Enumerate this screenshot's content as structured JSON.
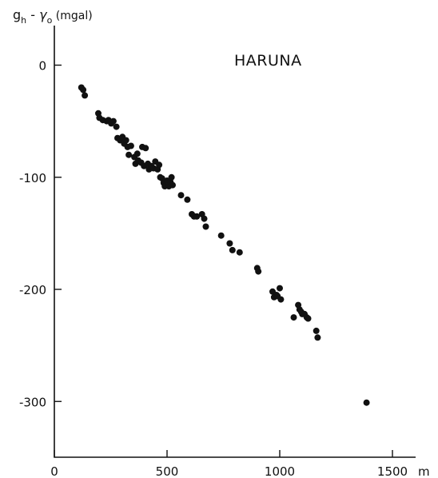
{
  "chart_data": {
    "type": "scatter",
    "title": "HARUNA",
    "ylabel": {
      "main": "g",
      "main_sub": "h",
      "operator": " - ",
      "symbol": "γ",
      "symbol_sub": "o",
      "unit": " (mgal)"
    },
    "xlabel_unit": "m",
    "xlim": [
      0,
      1600
    ],
    "ylim": [
      -350,
      40
    ],
    "x_ticks": [
      0,
      500,
      1000,
      1500
    ],
    "x_tick_labels": [
      "0",
      "500",
      "1000",
      "1500"
    ],
    "y_ticks": [
      0,
      -100,
      -200,
      -300
    ],
    "y_tick_labels": [
      "0",
      "-100",
      "-200",
      "-300"
    ],
    "grid": false,
    "legend": "none",
    "series": [
      {
        "points": [
          [
            120,
            -20
          ],
          [
            128,
            -22
          ],
          [
            135,
            -27
          ],
          [
            195,
            -43
          ],
          [
            200,
            -47
          ],
          [
            215,
            -49
          ],
          [
            232,
            -50
          ],
          [
            240,
            -49
          ],
          [
            252,
            -52
          ],
          [
            262,
            -50
          ],
          [
            275,
            -55
          ],
          [
            280,
            -65
          ],
          [
            292,
            -67
          ],
          [
            302,
            -64
          ],
          [
            310,
            -70
          ],
          [
            318,
            -67
          ],
          [
            325,
            -73
          ],
          [
            330,
            -80
          ],
          [
            340,
            -72
          ],
          [
            355,
            -82
          ],
          [
            360,
            -88
          ],
          [
            368,
            -79
          ],
          [
            372,
            -85
          ],
          [
            385,
            -87
          ],
          [
            390,
            -73
          ],
          [
            398,
            -90
          ],
          [
            405,
            -74
          ],
          [
            415,
            -88
          ],
          [
            420,
            -93
          ],
          [
            430,
            -90
          ],
          [
            440,
            -92
          ],
          [
            448,
            -86
          ],
          [
            458,
            -93
          ],
          [
            465,
            -89
          ],
          [
            470,
            -100
          ],
          [
            478,
            -101
          ],
          [
            485,
            -105
          ],
          [
            490,
            -108
          ],
          [
            500,
            -103
          ],
          [
            508,
            -108
          ],
          [
            515,
            -104
          ],
          [
            520,
            -100
          ],
          [
            525,
            -107
          ],
          [
            562,
            -116
          ],
          [
            590,
            -120
          ],
          [
            610,
            -133
          ],
          [
            620,
            -135
          ],
          [
            632,
            -135
          ],
          [
            655,
            -133
          ],
          [
            665,
            -137
          ],
          [
            672,
            -144
          ],
          [
            740,
            -152
          ],
          [
            778,
            -159
          ],
          [
            790,
            -165
          ],
          [
            822,
            -167
          ],
          [
            900,
            -181
          ],
          [
            905,
            -184
          ],
          [
            968,
            -202
          ],
          [
            975,
            -207
          ],
          [
            985,
            -205
          ],
          [
            990,
            -206
          ],
          [
            1000,
            -199
          ],
          [
            1005,
            -209
          ],
          [
            1062,
            -225
          ],
          [
            1082,
            -214
          ],
          [
            1088,
            -218
          ],
          [
            1095,
            -220
          ],
          [
            1100,
            -222
          ],
          [
            1110,
            -222
          ],
          [
            1120,
            -225
          ],
          [
            1126,
            -226
          ],
          [
            1162,
            -237
          ],
          [
            1168,
            -243
          ],
          [
            1385,
            -301
          ]
        ]
      }
    ]
  }
}
